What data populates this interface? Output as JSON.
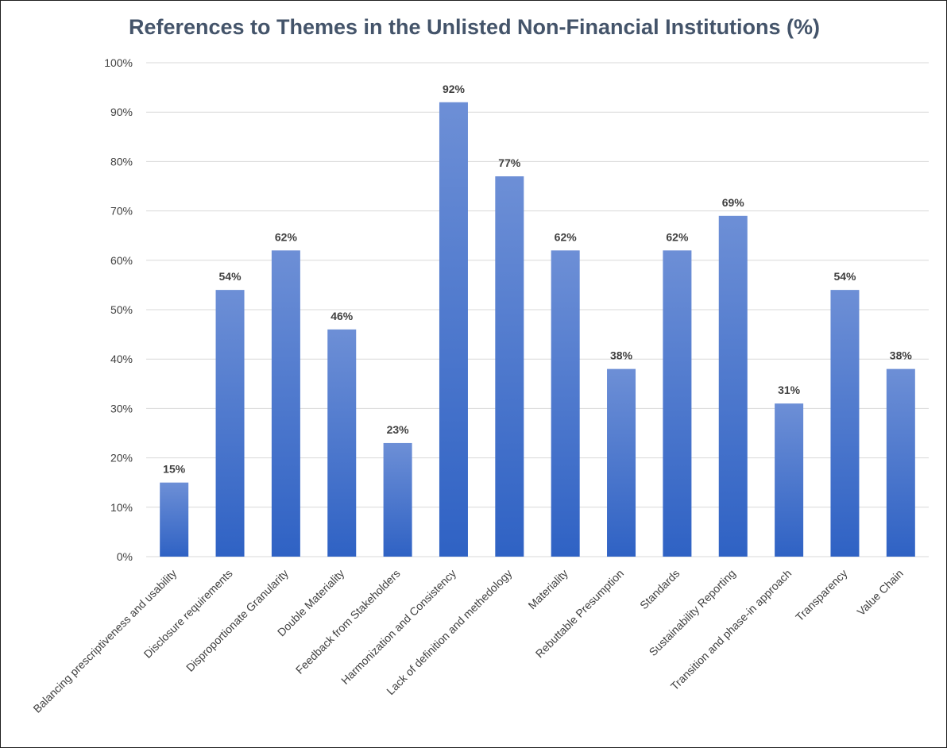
{
  "chart_data": {
    "type": "bar",
    "title": "References to Themes in the Unlisted Non-Financial Institutions (%)",
    "categories": [
      "Balancing prescriptiveness and usability",
      "Disclosure requirements",
      "Disproportionate Granularity",
      "Double Materiality",
      "Feedback from Stakeholders",
      "Harmonization and Consistency",
      "Lack of definition and methedology",
      "Materiality",
      "Rebuttable Presumption",
      "Standards",
      "Sustainability Reporting",
      "Transition and phase-in approach",
      "Transparency",
      "Value Chain"
    ],
    "values": [
      15,
      54,
      62,
      46,
      23,
      92,
      77,
      62,
      38,
      62,
      69,
      31,
      54,
      38
    ],
    "value_labels": [
      "15%",
      "54%",
      "62%",
      "46%",
      "23%",
      "92%",
      "77%",
      "62%",
      "38%",
      "62%",
      "69%",
      "31%",
      "54%",
      "38%"
    ],
    "y_ticks": [
      "0%",
      "10%",
      "20%",
      "30%",
      "40%",
      "50%",
      "60%",
      "70%",
      "80%",
      "90%",
      "100%"
    ],
    "ylim": [
      0,
      100
    ],
    "xlabel": "",
    "ylabel": "",
    "grid": true,
    "legend": "none",
    "colors": {
      "bar_top": "#6d8fd6",
      "bar_bottom": "#2f62c4",
      "grid": "#d9d9d9",
      "title": "#44546a"
    }
  }
}
